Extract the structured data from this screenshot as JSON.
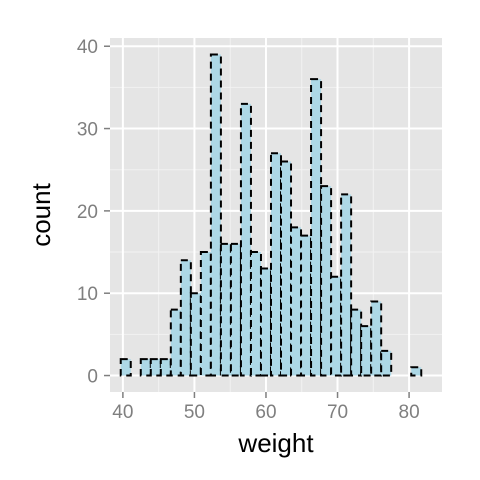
{
  "chart_data": {
    "type": "bar",
    "title": "",
    "xlabel": "weight",
    "ylabel": "count",
    "bin_width": 1.4,
    "bins": [
      {
        "x": 40.4,
        "count": 2
      },
      {
        "x": 41.8,
        "count": 0
      },
      {
        "x": 43.2,
        "count": 2
      },
      {
        "x": 44.6,
        "count": 2
      },
      {
        "x": 46.0,
        "count": 2
      },
      {
        "x": 47.4,
        "count": 8
      },
      {
        "x": 48.8,
        "count": 14
      },
      {
        "x": 50.2,
        "count": 10
      },
      {
        "x": 51.6,
        "count": 15
      },
      {
        "x": 53.0,
        "count": 39
      },
      {
        "x": 54.4,
        "count": 16
      },
      {
        "x": 55.8,
        "count": 16
      },
      {
        "x": 57.2,
        "count": 33
      },
      {
        "x": 58.6,
        "count": 15
      },
      {
        "x": 60.0,
        "count": 13
      },
      {
        "x": 61.4,
        "count": 27
      },
      {
        "x": 62.8,
        "count": 26
      },
      {
        "x": 64.2,
        "count": 18
      },
      {
        "x": 65.6,
        "count": 17
      },
      {
        "x": 67.0,
        "count": 36
      },
      {
        "x": 68.4,
        "count": 23
      },
      {
        "x": 69.8,
        "count": 12
      },
      {
        "x": 71.2,
        "count": 22
      },
      {
        "x": 72.6,
        "count": 8
      },
      {
        "x": 74.0,
        "count": 6
      },
      {
        "x": 75.4,
        "count": 9
      },
      {
        "x": 76.8,
        "count": 3
      },
      {
        "x": 78.2,
        "count": 0
      },
      {
        "x": 79.6,
        "count": 0
      },
      {
        "x": 81.0,
        "count": 1
      },
      {
        "x": 82.4,
        "count": 0
      }
    ],
    "xlim": [
      38.2,
      84.6
    ],
    "ylim": [
      -2.0,
      41.0
    ],
    "x_ticks": [
      40,
      50,
      60,
      70,
      80
    ],
    "y_ticks": [
      0,
      10,
      20,
      30,
      40
    ],
    "x_tick_labels": [
      "40",
      "50",
      "60",
      "70",
      "80"
    ],
    "y_tick_labels": [
      "0",
      "10",
      "20",
      "30",
      "40"
    ],
    "grid": true,
    "colors": {
      "panel_background": "#e5e5e5",
      "grid_major": "#ffffff",
      "grid_minor": "#f2f2f2",
      "bar_fill": "#add8e6",
      "bar_outline": "#000000",
      "tick_label": "#7f7f7f",
      "axis_title": "#000000"
    }
  }
}
